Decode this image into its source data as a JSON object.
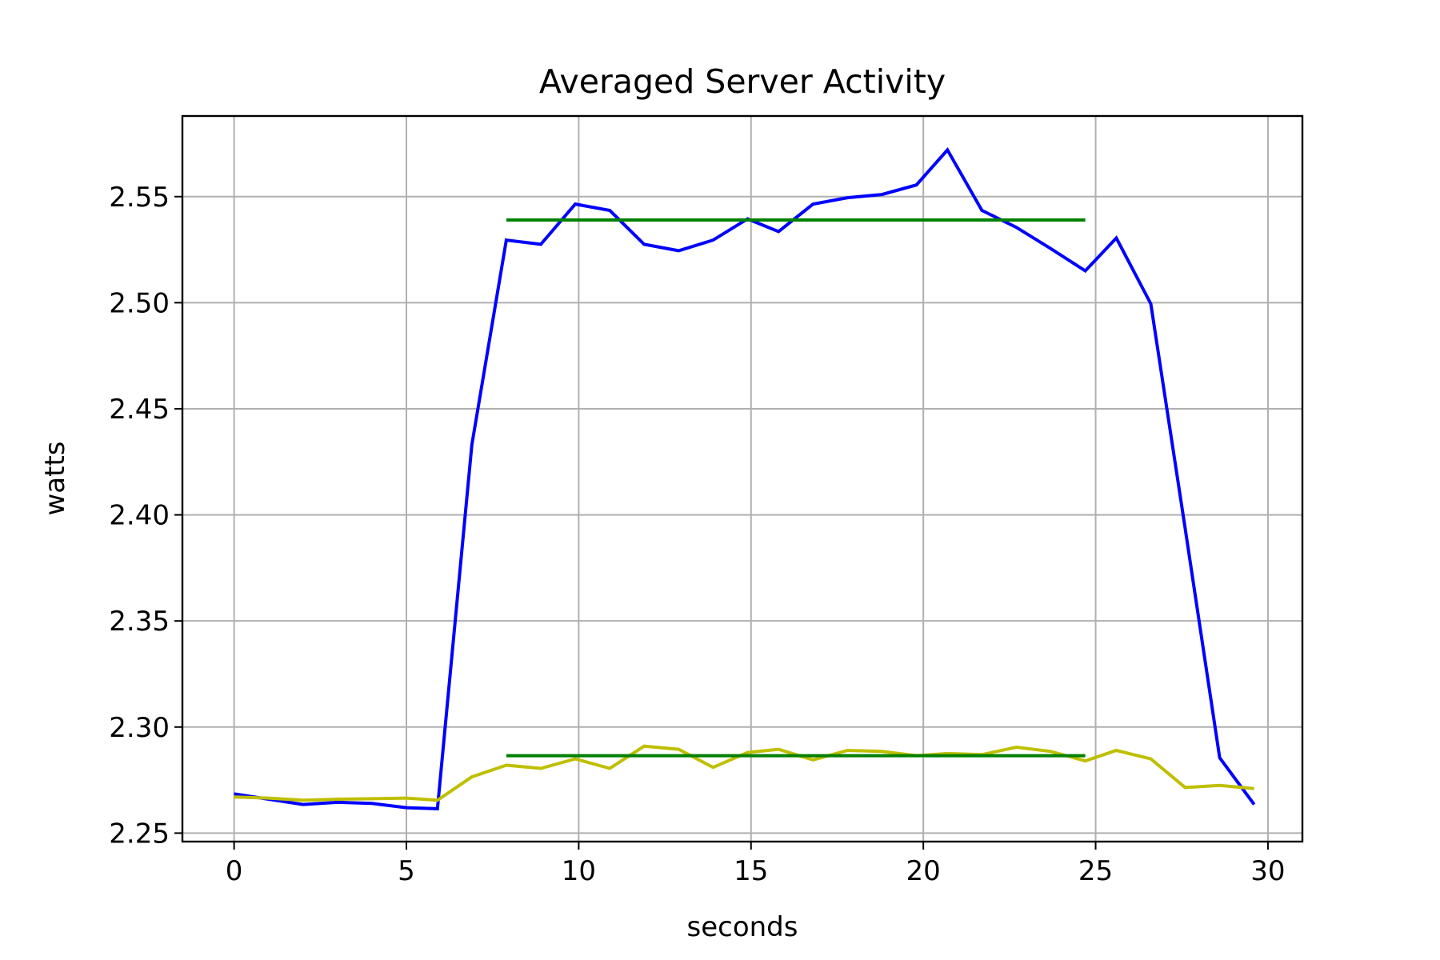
{
  "chart_data": {
    "type": "line",
    "title": "Averaged Server Activity",
    "xlabel": "seconds",
    "ylabel": "watts",
    "xlim": [
      -1.5,
      31
    ],
    "ylim": [
      2.246,
      2.588
    ],
    "xticks": [
      0,
      5,
      10,
      15,
      20,
      25,
      30
    ],
    "yticks": [
      2.25,
      2.3,
      2.35,
      2.4,
      2.45,
      2.5,
      2.55
    ],
    "xtick_labels": [
      "0",
      "5",
      "10",
      "15",
      "20",
      "25",
      "30"
    ],
    "ytick_labels": [
      "2.25",
      "2.30",
      "2.35",
      "2.40",
      "2.45",
      "2.50",
      "2.55"
    ],
    "grid": true,
    "series": [
      {
        "color": "#0000ff",
        "x": [
          0,
          1,
          2,
          3,
          4,
          5,
          5.9,
          6.9,
          7.9,
          8.9,
          9.9,
          10.9,
          11.9,
          12.9,
          13.9,
          14.9,
          15.8,
          16.8,
          17.8,
          18.8,
          19.8,
          20.7,
          21.7,
          22.7,
          23.7,
          24.7,
          25.6,
          26.6,
          27.6,
          28.6,
          29.6
        ],
        "values": [
          2.2685,
          2.266,
          2.2635,
          2.2645,
          2.264,
          2.262,
          2.2615,
          2.433,
          2.5295,
          2.5275,
          2.5465,
          2.5435,
          2.5275,
          2.5245,
          2.5295,
          2.5395,
          2.5335,
          2.5465,
          2.5495,
          2.551,
          2.5555,
          2.572,
          2.5435,
          2.5355,
          2.5255,
          2.515,
          2.5305,
          2.4995,
          2.3935,
          2.2855,
          2.2635
        ]
      },
      {
        "color": "#bfbf00",
        "x": [
          0,
          1,
          2,
          3,
          4,
          5,
          5.9,
          6.9,
          7.9,
          8.9,
          9.9,
          10.9,
          11.9,
          12.9,
          13.9,
          14.9,
          15.8,
          16.8,
          17.8,
          18.8,
          19.8,
          20.7,
          21.7,
          22.7,
          23.7,
          24.7,
          25.6,
          26.6,
          27.6,
          28.6,
          29.6
        ],
        "values": [
          2.267,
          2.2665,
          2.2655,
          2.266,
          2.2662,
          2.2665,
          2.2655,
          2.2765,
          2.282,
          2.2805,
          2.285,
          2.2805,
          2.291,
          2.2895,
          2.281,
          2.288,
          2.2895,
          2.2845,
          2.289,
          2.2885,
          2.2865,
          2.2875,
          2.287,
          2.2905,
          2.2885,
          2.284,
          2.289,
          2.285,
          2.2715,
          2.2725,
          2.271
        ]
      },
      {
        "color": "#008000",
        "x": [
          7.9,
          24.7
        ],
        "values": [
          2.539,
          2.539
        ]
      },
      {
        "color": "#008000",
        "x": [
          7.9,
          24.7
        ],
        "values": [
          2.2865,
          2.2865
        ]
      }
    ]
  }
}
